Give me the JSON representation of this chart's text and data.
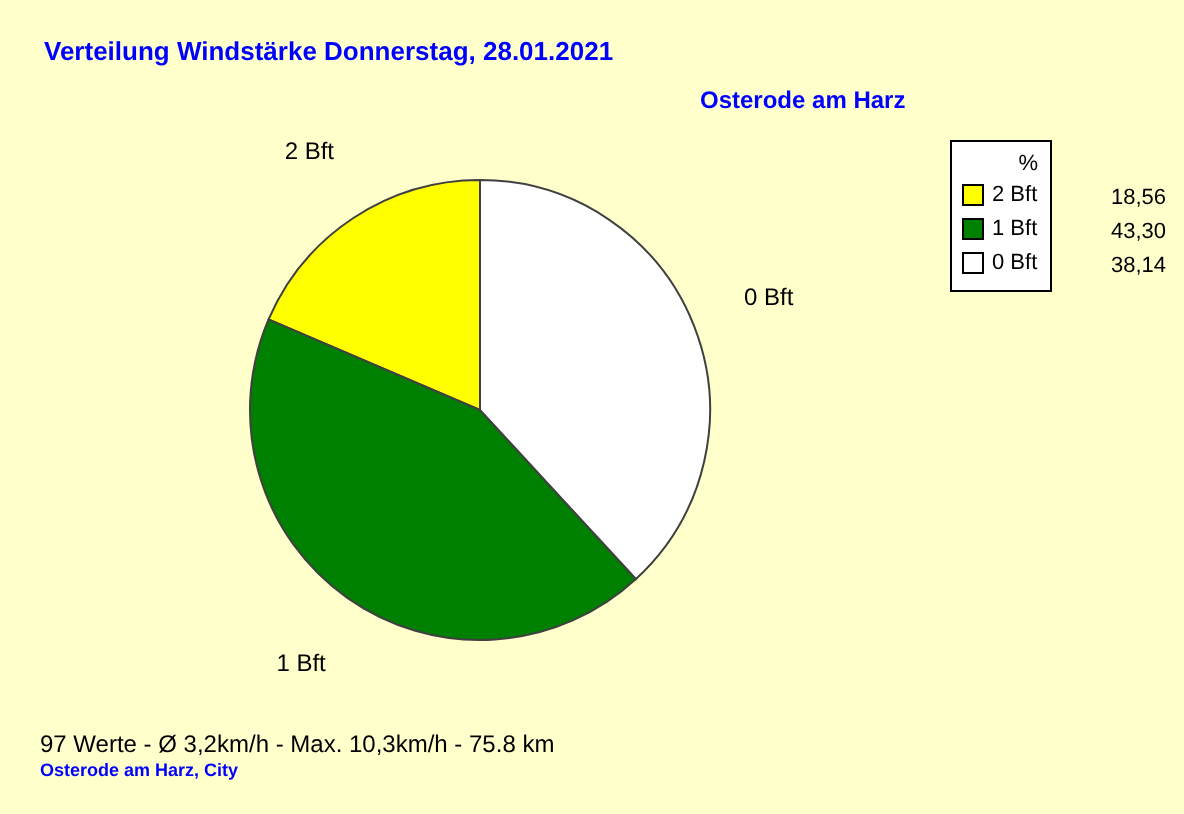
{
  "chart_data": {
    "type": "pie",
    "title": "Verteilung Windstärke  Donnerstag, 28.01.2021",
    "subtitle": "Osterode am Harz",
    "categories": [
      "2 Bft",
      "1 Bft",
      "0 Bft"
    ],
    "values": [
      18.56,
      43.3,
      38.14
    ],
    "colors": [
      "#ffff00",
      "#008000",
      "#ffffff"
    ],
    "value_labels": [
      "18,56",
      "43,30",
      "38,14"
    ],
    "legend_title": "%",
    "legend": "top right",
    "annotations": [
      "97 Werte   -   Ø 3,2km/h  -  Max. 10,3km/h   -   75.8 km",
      "Osterode am Harz, City"
    ]
  }
}
